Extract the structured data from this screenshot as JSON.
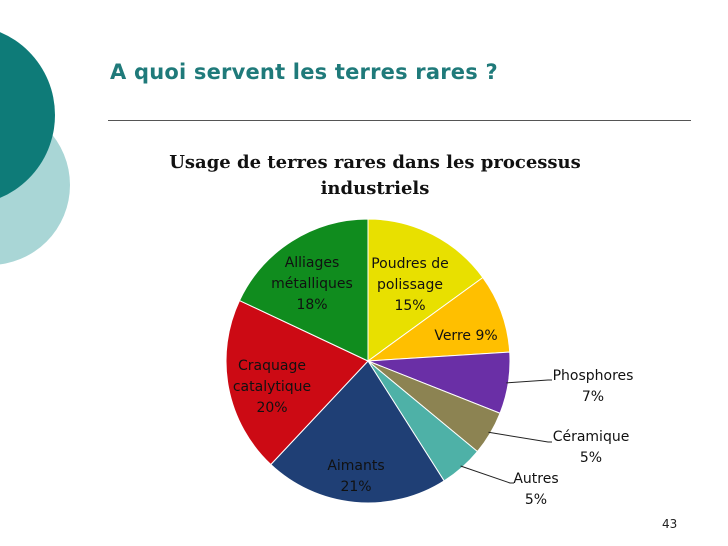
{
  "slide": {
    "title": "A quoi servent les terres rares ?",
    "page_number": "43"
  },
  "chart_data": {
    "type": "pie",
    "title": "Usage de terres rares dans les processus industriels",
    "title_lines": [
      "Usage de terres rares dans les processus",
      "industriels"
    ],
    "slices": [
      {
        "lines": [
          "Poudres de",
          "polissage",
          "15%"
        ],
        "value": 15,
        "color": "#e8e000"
      },
      {
        "lines": [
          "Verre 9%"
        ],
        "value": 9,
        "color": "#ffbf00"
      },
      {
        "lines": [
          "Phosphores",
          "7%"
        ],
        "value": 7,
        "color": "#6a2fa6"
      },
      {
        "lines": [
          "Céramique",
          "5%"
        ],
        "value": 5,
        "color": "#8c8352"
      },
      {
        "lines": [
          "Autres",
          "5%"
        ],
        "value": 5,
        "color": "#4eb1a7"
      },
      {
        "lines": [
          "Aimants",
          "21%"
        ],
        "value": 21,
        "color": "#1f3f75"
      },
      {
        "lines": [
          "Craquage",
          "catalytique",
          "20%"
        ],
        "value": 20,
        "color": "#cc0a14"
      },
      {
        "lines": [
          "Alliages",
          "métalliques",
          "18%"
        ],
        "value": 18,
        "color": "#108c1e"
      }
    ],
    "start": "12 o'clock",
    "direction": "clockwise"
  }
}
